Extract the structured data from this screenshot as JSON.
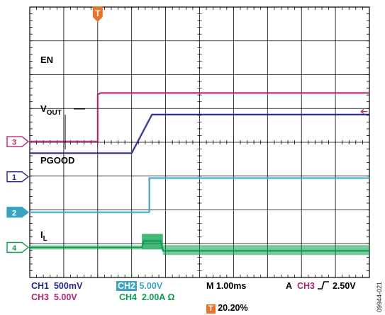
{
  "chart_data": {
    "type": "line",
    "title": "",
    "xlabel": "",
    "ylabel": "",
    "x_range_div": [
      0,
      10
    ],
    "y_range_div": [
      0,
      8
    ],
    "grid": true,
    "trigger_marker": "T",
    "trigger_position_div": 2.0,
    "series": [
      {
        "name": "EN",
        "channel": "3",
        "color": "#b0246d",
        "marker_y_div": 4.02,
        "x": [
          0,
          2.0,
          2.0,
          2.1,
          10
        ],
        "y": [
          4.02,
          4.02,
          5.42,
          5.46,
          5.46
        ]
      },
      {
        "name": "V",
        "name_sub": "OUT",
        "color": "#24268d",
        "x": [
          0,
          3.0,
          3.6,
          10
        ],
        "y": [
          3.68,
          3.68,
          4.82,
          4.82
        ]
      },
      {
        "name": "PGOOD",
        "channel": "2",
        "color": "#3aa4c2",
        "marker_y_div": 1.93,
        "x": [
          0,
          3.52,
          3.52,
          10
        ],
        "y": [
          1.93,
          1.93,
          2.94,
          2.94
        ]
      },
      {
        "name": "I",
        "name_sub": "L",
        "channel": "4",
        "color": "#0a9e4e",
        "marker_y_div": 0.89,
        "x": [
          0,
          3.3,
          3.36,
          3.86,
          3.92,
          10
        ],
        "y": [
          0.89,
          0.89,
          1.08,
          1.08,
          0.79,
          0.79
        ]
      }
    ],
    "ch1_marker": {
      "channel": "1",
      "marker_y_div": 2.98,
      "color": "#24268d"
    },
    "ref_arrow_y_div": 4.91
  },
  "readouts": {
    "ch1": "CH1",
    "ch1_scale": "500mV",
    "ch2": "CH2",
    "ch2_scale": "5.00V",
    "ch3": "CH3",
    "ch3_scale": "5.00V",
    "ch4": "CH4",
    "ch4_scale": "2.00A Ω",
    "timebase": "M 1.00ms",
    "trigger_prefix": "A",
    "trigger_channel": "CH3",
    "trigger_level": "2.50V",
    "trigger_pos_icon": "T",
    "trigger_pos": "20.20%"
  },
  "figure_id": "09944-021",
  "colors": {
    "grid": "#000000",
    "ch1": "#24268d",
    "ch2": "#3aa4c2",
    "ch3": "#b0246d",
    "ch4": "#0a9e4e",
    "trigger": "#e8732a",
    "readout_dark": "#24268d"
  }
}
